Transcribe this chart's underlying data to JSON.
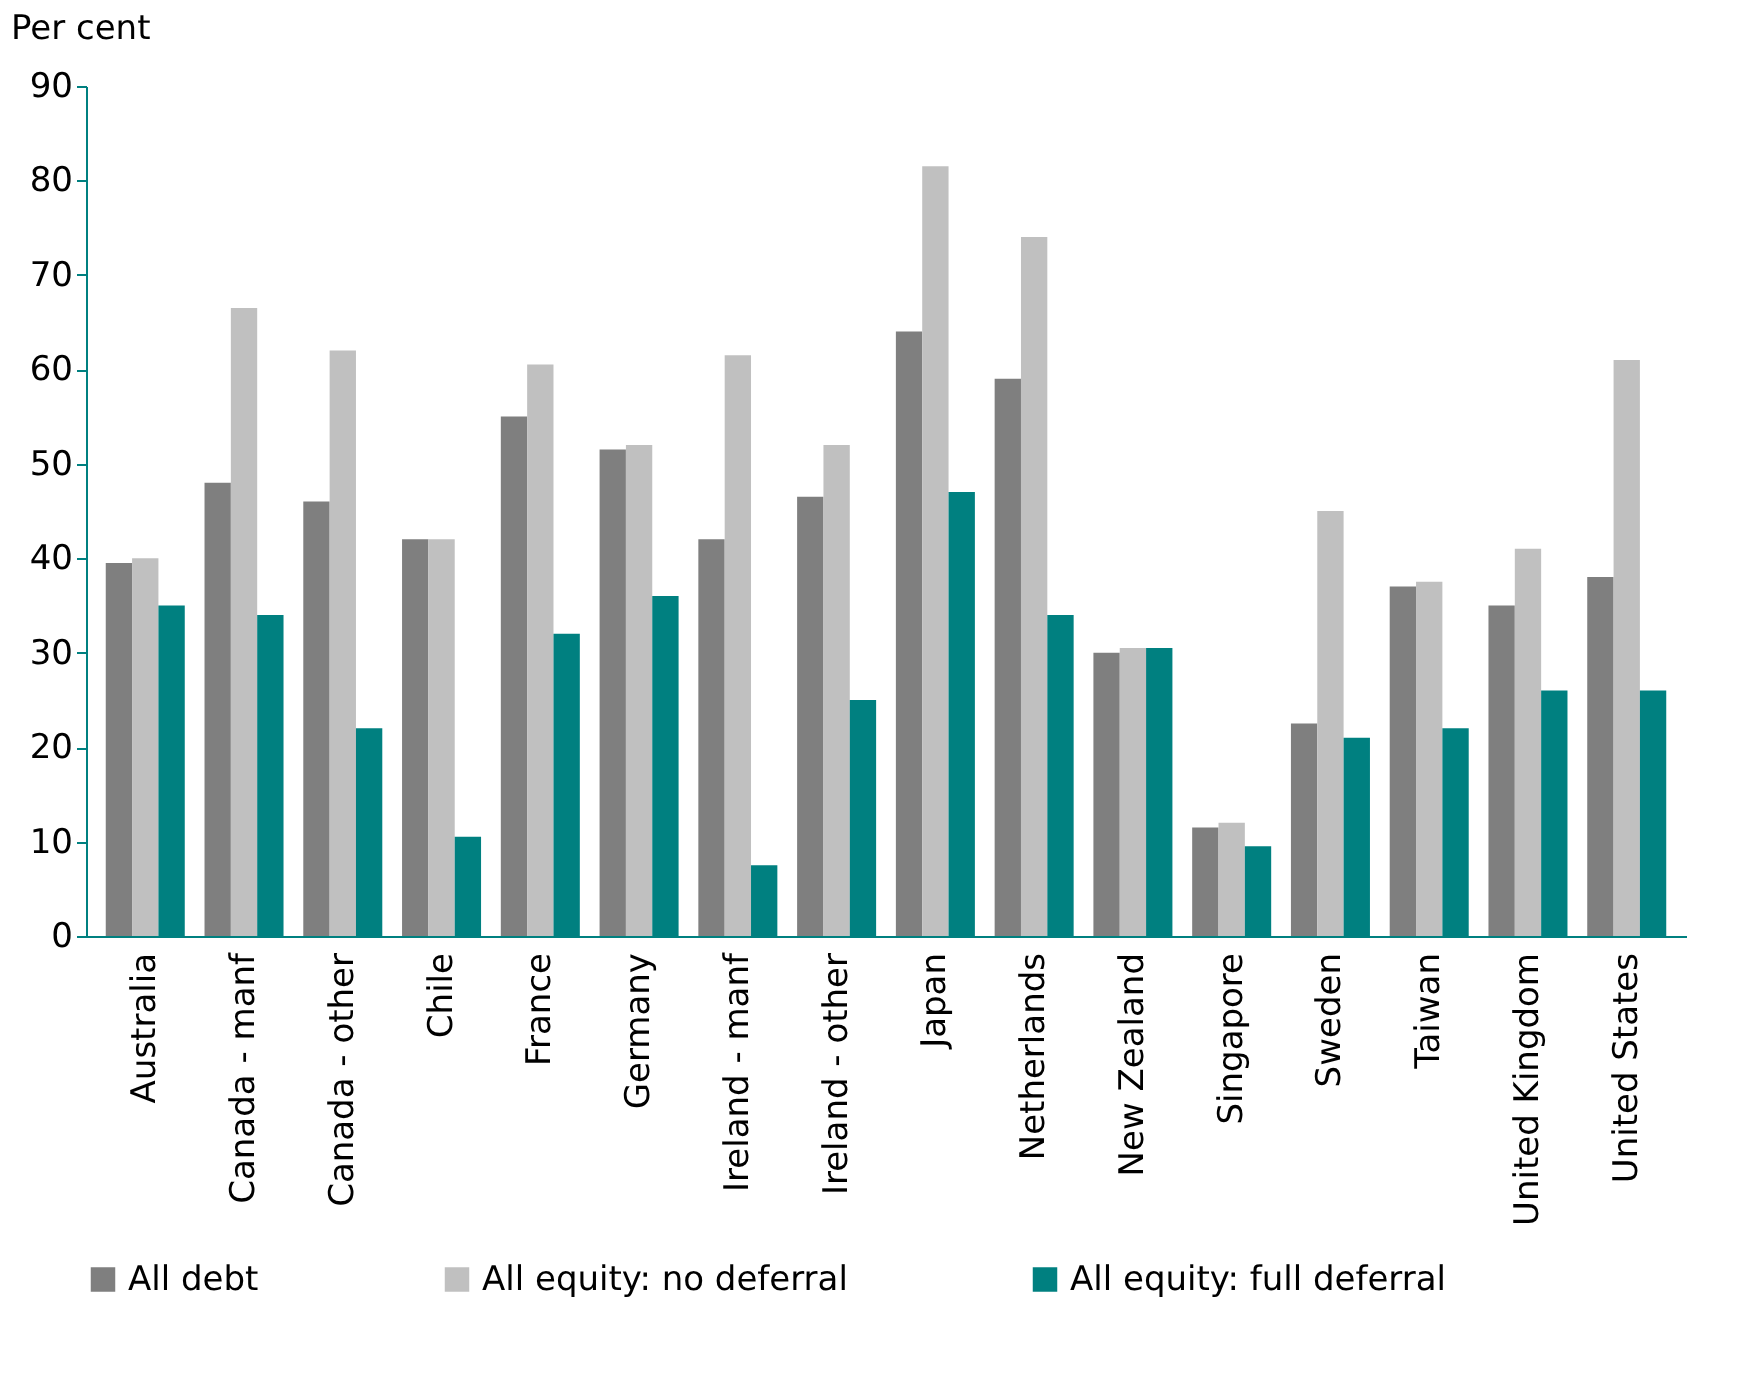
{
  "chart_data": {
    "type": "bar",
    "ylabel": "Per cent",
    "categories": [
      "Australia",
      "Canada - manf",
      "Canada - other",
      "Chile",
      "France",
      "Germany",
      "Ireland - manf",
      "Ireland - other",
      "Japan",
      "Netherlands",
      "New Zealand",
      "Singapore",
      "Sweden",
      "Taiwan",
      "United Kingdom",
      "United States"
    ],
    "series": [
      {
        "name": "All debt",
        "color": "#7f7f7f",
        "values": [
          39.5,
          48,
          46,
          42,
          55,
          51.5,
          42,
          46.5,
          64,
          59,
          30,
          11.5,
          22.5,
          37,
          35,
          38
        ]
      },
      {
        "name": "All equity: no deferral",
        "color": "#c0c0c0",
        "values": [
          40,
          66.5,
          62,
          42,
          60.5,
          52,
          61.5,
          52,
          81.5,
          74,
          30.5,
          12,
          45,
          37.5,
          41,
          61
        ]
      },
      {
        "name": "All equity: full deferral",
        "color": "#008080",
        "values": [
          35,
          34,
          22,
          10.5,
          32,
          36,
          7.5,
          25,
          47,
          34,
          30.5,
          9.5,
          21,
          22,
          26,
          26
        ]
      }
    ],
    "ylim": [
      0,
      90
    ],
    "yticks": [
      0,
      10,
      20,
      30,
      40,
      50,
      60,
      70,
      80,
      90
    ],
    "grid": false,
    "legend": "bottom"
  }
}
